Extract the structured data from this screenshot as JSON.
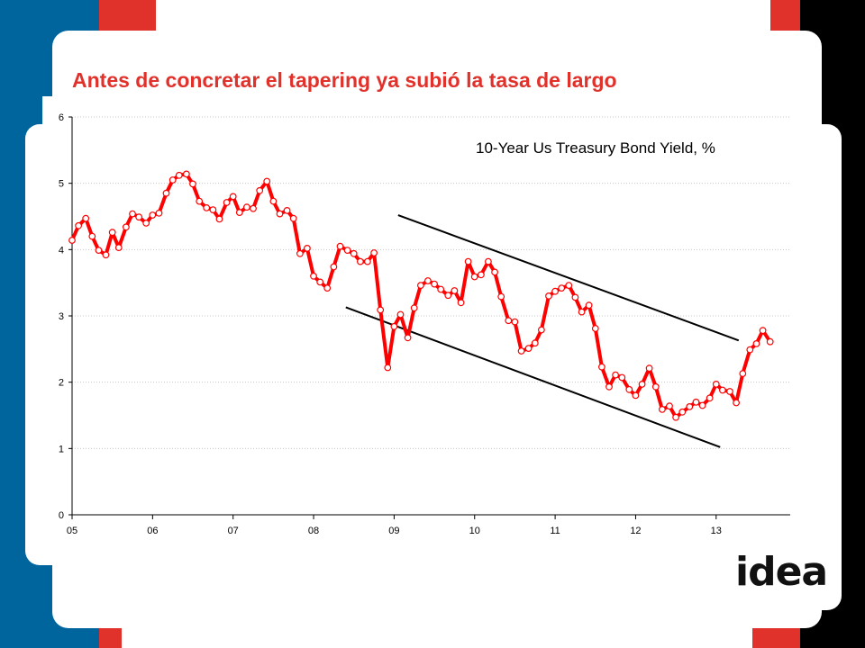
{
  "slide": {
    "title": "Antes de concretar el tapering ya subió la tasa de largo",
    "logo_text": "idea"
  },
  "colors": {
    "title": "#e0312b",
    "blue_panel": "#00659c",
    "red_accent": "#e0312b",
    "black_panel": "#000000",
    "series": "#ff0000",
    "trendlines": "#000000"
  },
  "chart_data": {
    "type": "line",
    "title": "10-Year Us Treasury Bond Yield, %",
    "xlabel": "",
    "ylabel": "",
    "ylim": [
      0,
      6
    ],
    "yticks": [
      "0",
      "1",
      "2",
      "3",
      "4",
      "5",
      "6"
    ],
    "xticks": [
      "05",
      "06",
      "07",
      "08",
      "09",
      "10",
      "11",
      "12",
      "13"
    ],
    "xlim": [
      2005.0,
      2013.92
    ],
    "grid": "horizontal",
    "legend": "none",
    "series": [
      {
        "marker": "circle",
        "values": [
          [
            2005.0,
            4.14
          ],
          [
            2005.08,
            4.36
          ],
          [
            2005.17,
            4.47
          ],
          [
            2005.25,
            4.2
          ],
          [
            2005.33,
            3.99
          ],
          [
            2005.42,
            3.92
          ],
          [
            2005.5,
            4.26
          ],
          [
            2005.58,
            4.03
          ],
          [
            2005.67,
            4.34
          ],
          [
            2005.75,
            4.54
          ],
          [
            2005.83,
            4.49
          ],
          [
            2005.92,
            4.4
          ],
          [
            2006.0,
            4.52
          ],
          [
            2006.08,
            4.55
          ],
          [
            2006.17,
            4.85
          ],
          [
            2006.25,
            5.05
          ],
          [
            2006.33,
            5.12
          ],
          [
            2006.42,
            5.14
          ],
          [
            2006.5,
            4.99
          ],
          [
            2006.58,
            4.73
          ],
          [
            2006.67,
            4.63
          ],
          [
            2006.75,
            4.6
          ],
          [
            2006.83,
            4.46
          ],
          [
            2006.92,
            4.71
          ],
          [
            2007.0,
            4.8
          ],
          [
            2007.08,
            4.56
          ],
          [
            2007.17,
            4.64
          ],
          [
            2007.25,
            4.62
          ],
          [
            2007.33,
            4.89
          ],
          [
            2007.42,
            5.03
          ],
          [
            2007.5,
            4.73
          ],
          [
            2007.58,
            4.54
          ],
          [
            2007.67,
            4.59
          ],
          [
            2007.75,
            4.47
          ],
          [
            2007.83,
            3.94
          ],
          [
            2007.92,
            4.02
          ],
          [
            2008.0,
            3.6
          ],
          [
            2008.08,
            3.51
          ],
          [
            2008.17,
            3.42
          ],
          [
            2008.25,
            3.74
          ],
          [
            2008.33,
            4.05
          ],
          [
            2008.42,
            3.99
          ],
          [
            2008.5,
            3.94
          ],
          [
            2008.58,
            3.82
          ],
          [
            2008.67,
            3.82
          ],
          [
            2008.75,
            3.95
          ],
          [
            2008.83,
            3.09
          ],
          [
            2008.92,
            2.22
          ],
          [
            2009.0,
            2.84
          ],
          [
            2009.08,
            3.02
          ],
          [
            2009.17,
            2.67
          ],
          [
            2009.25,
            3.12
          ],
          [
            2009.33,
            3.46
          ],
          [
            2009.42,
            3.53
          ],
          [
            2009.5,
            3.48
          ],
          [
            2009.58,
            3.4
          ],
          [
            2009.67,
            3.31
          ],
          [
            2009.75,
            3.38
          ],
          [
            2009.83,
            3.2
          ],
          [
            2009.92,
            3.82
          ],
          [
            2010.0,
            3.59
          ],
          [
            2010.08,
            3.62
          ],
          [
            2010.17,
            3.82
          ],
          [
            2010.25,
            3.66
          ],
          [
            2010.33,
            3.29
          ],
          [
            2010.42,
            2.93
          ],
          [
            2010.5,
            2.91
          ],
          [
            2010.58,
            2.47
          ],
          [
            2010.67,
            2.51
          ],
          [
            2010.75,
            2.59
          ],
          [
            2010.83,
            2.79
          ],
          [
            2010.92,
            3.3
          ],
          [
            2011.0,
            3.37
          ],
          [
            2011.08,
            3.42
          ],
          [
            2011.17,
            3.46
          ],
          [
            2011.25,
            3.28
          ],
          [
            2011.33,
            3.06
          ],
          [
            2011.42,
            3.16
          ],
          [
            2011.5,
            2.81
          ],
          [
            2011.58,
            2.23
          ],
          [
            2011.67,
            1.93
          ],
          [
            2011.75,
            2.11
          ],
          [
            2011.83,
            2.07
          ],
          [
            2011.92,
            1.89
          ],
          [
            2012.0,
            1.8
          ],
          [
            2012.08,
            1.97
          ],
          [
            2012.17,
            2.21
          ],
          [
            2012.25,
            1.93
          ],
          [
            2012.33,
            1.59
          ],
          [
            2012.42,
            1.64
          ],
          [
            2012.5,
            1.47
          ],
          [
            2012.58,
            1.55
          ],
          [
            2012.67,
            1.63
          ],
          [
            2012.75,
            1.7
          ],
          [
            2012.83,
            1.65
          ],
          [
            2012.92,
            1.76
          ],
          [
            2013.0,
            1.97
          ],
          [
            2013.08,
            1.88
          ],
          [
            2013.17,
            1.86
          ],
          [
            2013.25,
            1.69
          ],
          [
            2013.33,
            2.13
          ],
          [
            2013.42,
            2.49
          ],
          [
            2013.5,
            2.58
          ],
          [
            2013.58,
            2.78
          ],
          [
            2013.67,
            2.61
          ]
        ]
      }
    ],
    "annotations": [
      {
        "type": "trendline",
        "from": [
          2009.05,
          4.52
        ],
        "to": [
          2013.28,
          2.63
        ]
      },
      {
        "type": "trendline",
        "from": [
          2008.4,
          3.13
        ],
        "to": [
          2013.05,
          1.02
        ]
      }
    ]
  }
}
